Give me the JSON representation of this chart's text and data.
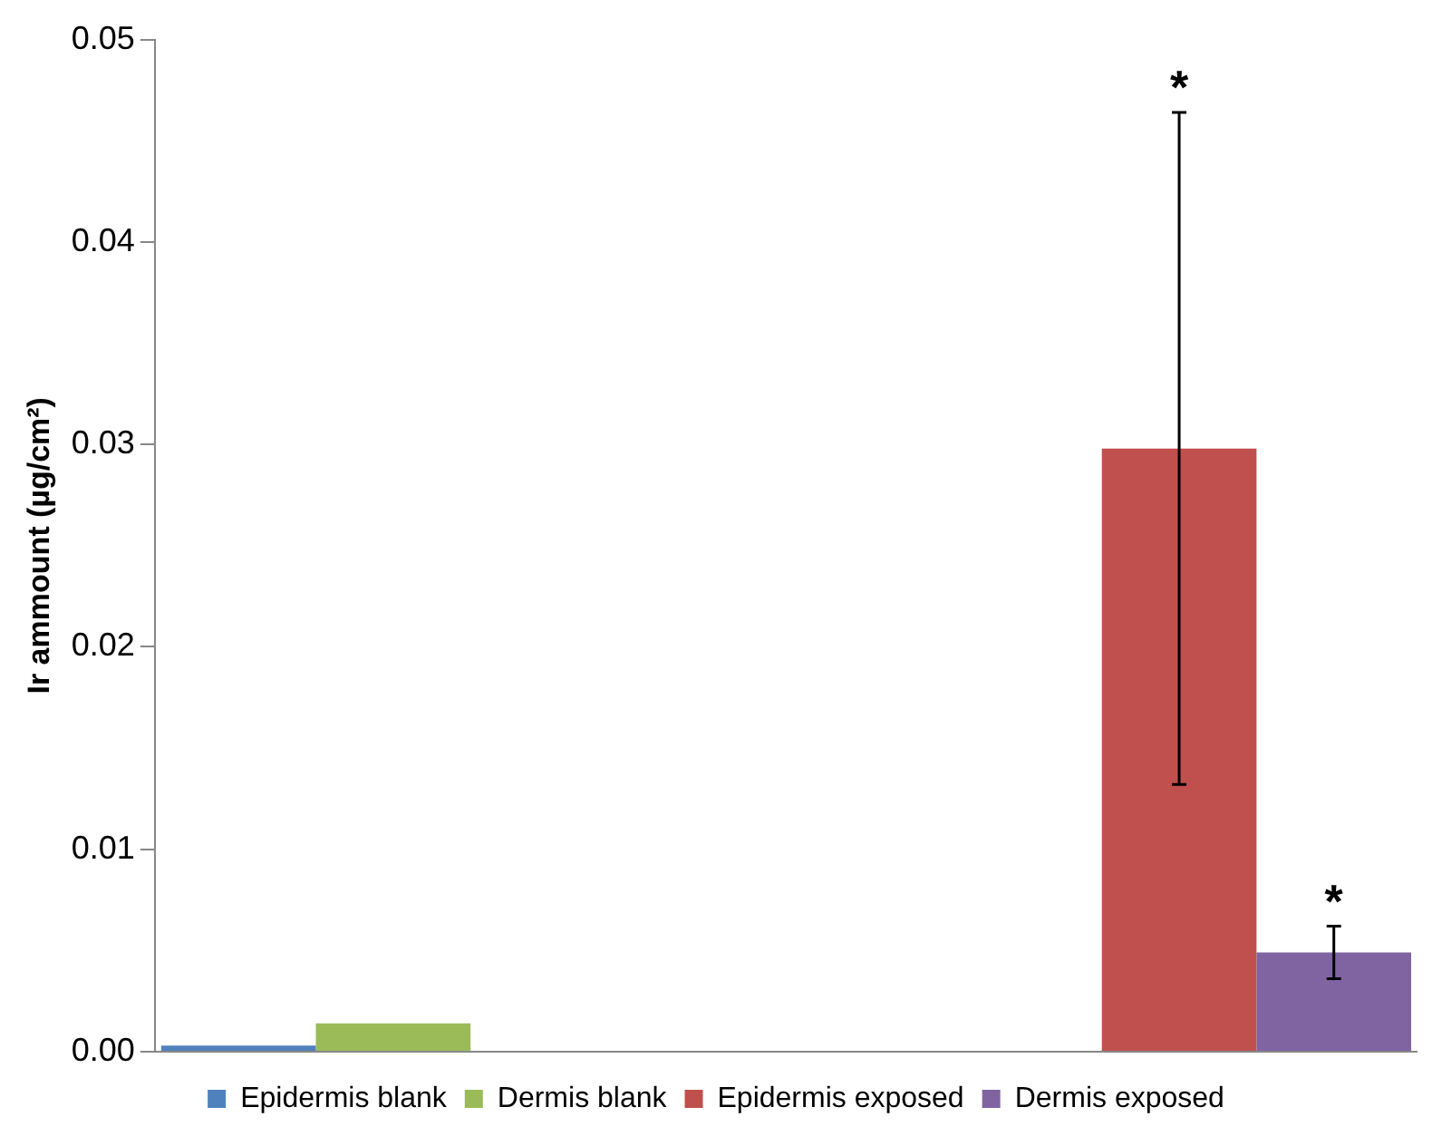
{
  "chart_data": {
    "type": "bar",
    "ylabel": "Ir ammount (µg/cm²)",
    "categories": [
      null,
      null
    ],
    "series": [
      {
        "name": "Epidermis blank",
        "color": "#4f81bd",
        "values": [
          0.0003,
          null
        ]
      },
      {
        "name": "Dermis blank",
        "color": "#9bbb59",
        "values": [
          0.0014,
          null
        ]
      },
      {
        "name": "Epidermis exposed",
        "color": "#c0504d",
        "values": [
          null,
          0.0298
        ],
        "errors": [
          null,
          0.0166
        ]
      },
      {
        "name": "Dermis exposed",
        "color": "#8064a2",
        "values": [
          null,
          0.0049
        ],
        "errors": [
          null,
          0.0013
        ]
      }
    ],
    "ylim": [
      0,
      0.05
    ],
    "yticks": [
      {
        "value": 0,
        "label": "0.00"
      },
      {
        "value": 0.01,
        "label": "0.01"
      },
      {
        "value": 0.02,
        "label": "0.02"
      },
      {
        "value": 0.03,
        "label": "0.03"
      },
      {
        "value": 0.04,
        "label": "0.04"
      },
      {
        "value": 0.05,
        "label": "0.05"
      }
    ],
    "annotations": [
      "*",
      "*"
    ],
    "grid": false,
    "legend": "bottom"
  }
}
